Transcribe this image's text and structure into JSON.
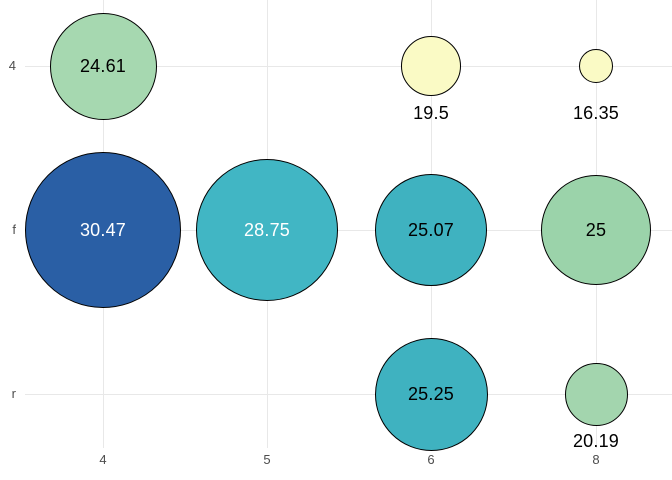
{
  "chart_data": {
    "type": "bubble",
    "x_axis": {
      "categories": [
        "4",
        "5",
        "6",
        "8"
      ]
    },
    "y_axis": {
      "categories": [
        "4",
        "f",
        "r"
      ]
    },
    "grid": true,
    "gridline_color": "#e8e8e8",
    "axis_text_color": "#4d4d4d",
    "outline_color": "#000000",
    "background_color": "#ffffff",
    "points": [
      {
        "x": "4",
        "y": "4",
        "value": 24.61,
        "label": "24.61",
        "color": "#a6d8b0",
        "text_color": "#000000",
        "label_position": "center",
        "diameter": 107
      },
      {
        "x": "6",
        "y": "4",
        "value": 19.5,
        "label": "19.5",
        "color": "#fafac5",
        "text_color": "#000000",
        "label_position": "below",
        "diameter": 60
      },
      {
        "x": "8",
        "y": "4",
        "value": 16.35,
        "label": "16.35",
        "color": "#fafac5",
        "text_color": "#000000",
        "label_position": "below",
        "diameter": 34
      },
      {
        "x": "4",
        "y": "f",
        "value": 30.47,
        "label": "30.47",
        "color": "#2a5fa5",
        "text_color": "#ffffff",
        "label_position": "center",
        "diameter": 156
      },
      {
        "x": "5",
        "y": "f",
        "value": 28.75,
        "label": "28.75",
        "color": "#41b6c4",
        "text_color": "#ffffff",
        "label_position": "center",
        "diameter": 142
      },
      {
        "x": "6",
        "y": "f",
        "value": 25.07,
        "label": "25.07",
        "color": "#3fb2c0",
        "text_color": "#000000",
        "label_position": "center",
        "diameter": 112
      },
      {
        "x": "8",
        "y": "f",
        "value": 25,
        "label": "25",
        "color": "#9bd3aa",
        "text_color": "#000000",
        "label_position": "center",
        "diameter": 110
      },
      {
        "x": "6",
        "y": "r",
        "value": 25.25,
        "label": "25.25",
        "color": "#3fb2c0",
        "text_color": "#000000",
        "label_position": "center",
        "diameter": 113
      },
      {
        "x": "8",
        "y": "r",
        "value": 20.19,
        "label": "20.19",
        "color": "#a3d5ae",
        "text_color": "#000000",
        "label_position": "below",
        "diameter": 63
      }
    ]
  }
}
